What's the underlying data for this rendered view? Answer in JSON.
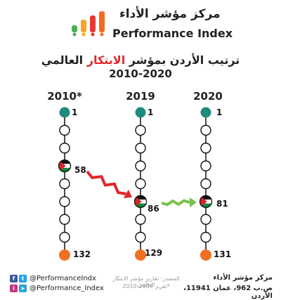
{
  "header": {
    "brand_ar": "مركز مؤشر الأداء",
    "brand_en": "Performance Index",
    "logo_bar_colors": [
      "#4caf50",
      "#f5a623",
      "#e53935",
      "#f36c21"
    ]
  },
  "title": {
    "line1_prefix": "ترتيب الأردن بمؤشر ",
    "line1_highlight": "الابتكار",
    "line1_suffix": " العالمي",
    "line2": "2010-2020"
  },
  "colors": {
    "top": "#1f8a7e",
    "bottom": "#f37022",
    "decline_arrow": "#e3262d",
    "improve_arrow": "#7cc04a",
    "flag_black": "#111111",
    "flag_white": "#ffffff",
    "flag_green": "#0a8a3a",
    "flag_red": "#d8232a"
  },
  "columns": [
    {
      "year": "2010*",
      "top_rank": "1",
      "jordan_rank": "58",
      "bottom_rank": "132",
      "flag_step": 3
    },
    {
      "year": "2019",
      "top_rank": "1",
      "jordan_rank": "86",
      "bottom_rank": "129",
      "flag_step": 5
    },
    {
      "year": "2020",
      "top_rank": "1",
      "jordan_rank": "81",
      "bottom_rank": "131",
      "flag_step": 5
    }
  ],
  "footer": {
    "facebook_icon": "f",
    "twitter_icon": "t",
    "instagram_icon": "i",
    "telegram_icon": "➤",
    "handle1": "@PerformanceIndx",
    "handle2": "@Performance_Index",
    "source_line1": "المصدر: تقارير مؤشر الابتكار العالمي",
    "source_line2": "*تقرير 2009-2010",
    "addr_line1": "مركز مؤشر الأداء",
    "addr_line2": "ص.ب 962، عمان 11941، الأردن"
  }
}
